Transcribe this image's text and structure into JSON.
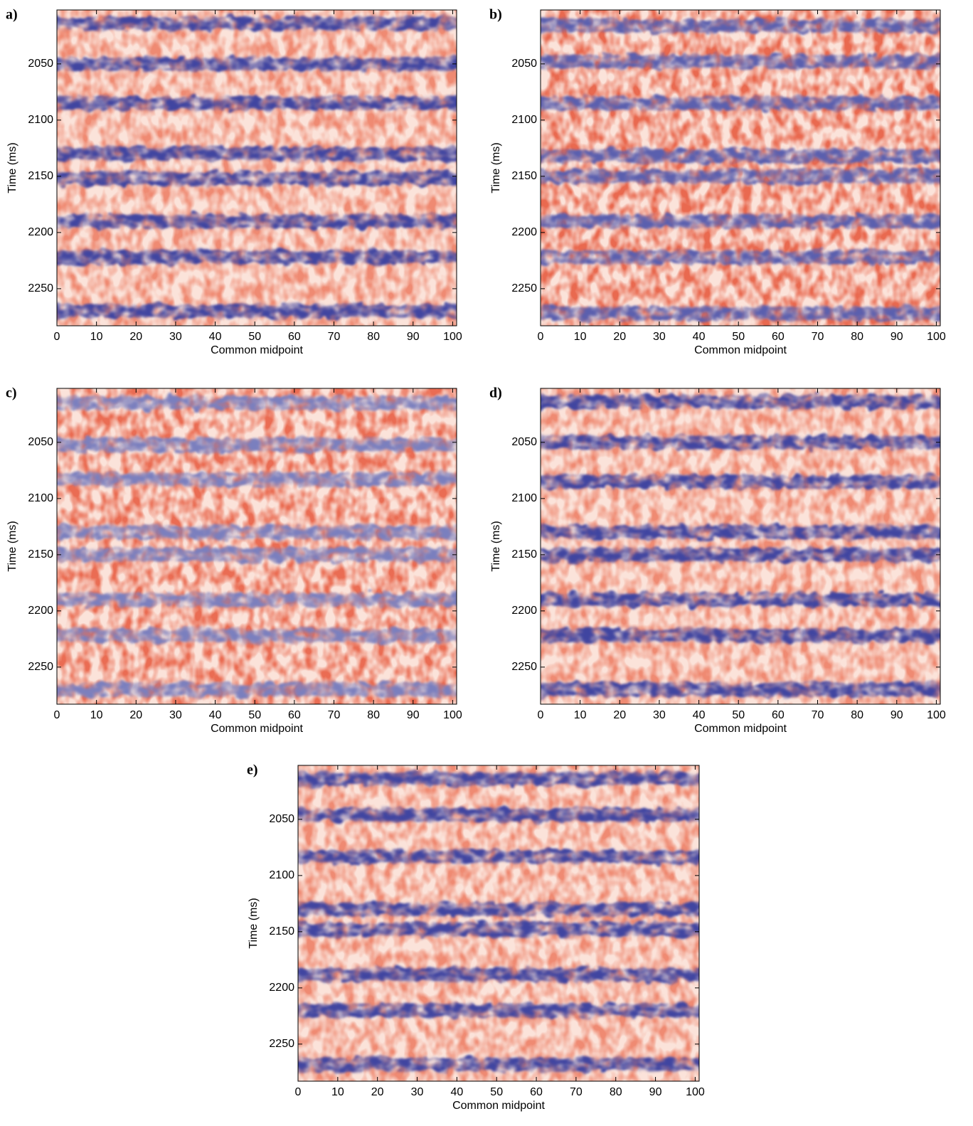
{
  "chart_data": [
    {
      "type": "heatmap",
      "panel_label": "a)",
      "xlabel": "Common midpoint",
      "ylabel": "Time (ms)",
      "xlim": [
        0,
        101
      ],
      "ylim": [
        2002,
        2283
      ],
      "y_reversed": true,
      "xticks": [
        0,
        10,
        20,
        30,
        40,
        50,
        60,
        70,
        80,
        90,
        100
      ],
      "yticks": [
        2050,
        2100,
        2150,
        2200,
        2250
      ],
      "background_color": "#ef8a72",
      "reflector_color": "#3f45a0",
      "reflectors": [
        2014,
        2050,
        2085,
        2130,
        2152,
        2190,
        2222,
        2270
      ]
    },
    {
      "type": "heatmap",
      "panel_label": "b)",
      "xlabel": "Common midpoint",
      "ylabel": "Time (ms)",
      "xlim": [
        0,
        101
      ],
      "ylim": [
        2002,
        2283
      ],
      "y_reversed": true,
      "xticks": [
        0,
        10,
        20,
        30,
        40,
        50,
        60,
        70,
        80,
        90,
        100
      ],
      "yticks": [
        2050,
        2100,
        2150,
        2200,
        2250
      ],
      "background_color": "#e9694f",
      "reflector_color": "#5a5fae",
      "reflectors": [
        2016,
        2048,
        2085,
        2132,
        2150,
        2190,
        2222,
        2272
      ]
    },
    {
      "type": "heatmap",
      "panel_label": "c)",
      "xlabel": "Common midpoint",
      "ylabel": "Time (ms)",
      "xlim": [
        0,
        101
      ],
      "ylim": [
        2002,
        2283
      ],
      "y_reversed": true,
      "xticks": [
        0,
        10,
        20,
        30,
        40,
        50,
        60,
        70,
        80,
        90,
        100
      ],
      "yticks": [
        2050,
        2100,
        2150,
        2200,
        2250
      ],
      "background_color": "#ea6c52",
      "reflector_color": "#7a7fbe",
      "reflectors": [
        2015,
        2052,
        2083,
        2130,
        2150,
        2190,
        2222,
        2270
      ]
    },
    {
      "type": "heatmap",
      "panel_label": "d)",
      "xlabel": "Common midpoint",
      "ylabel": "Time (ms)",
      "xlim": [
        0,
        101
      ],
      "ylim": [
        2002,
        2283
      ],
      "y_reversed": true,
      "xticks": [
        0,
        10,
        20,
        30,
        40,
        50,
        60,
        70,
        80,
        90,
        100
      ],
      "yticks": [
        2050,
        2100,
        2150,
        2200,
        2250
      ],
      "background_color": "#ef8a72",
      "reflector_color": "#3f45a0",
      "reflectors": [
        2014,
        2050,
        2085,
        2130,
        2150,
        2190,
        2222,
        2270
      ]
    },
    {
      "type": "heatmap",
      "panel_label": "e)",
      "xlabel": "Common midpoint",
      "ylabel": "Time (ms)",
      "xlim": [
        0,
        101
      ],
      "ylim": [
        2002,
        2283
      ],
      "y_reversed": true,
      "xticks": [
        0,
        10,
        20,
        30,
        40,
        50,
        60,
        70,
        80,
        90,
        100
      ],
      "yticks": [
        2050,
        2100,
        2150,
        2200,
        2250
      ],
      "background_color": "#ef8a72",
      "reflector_color": "#3f45a0",
      "reflectors": [
        2014,
        2046,
        2083,
        2130,
        2148,
        2188,
        2220,
        2268
      ]
    }
  ]
}
